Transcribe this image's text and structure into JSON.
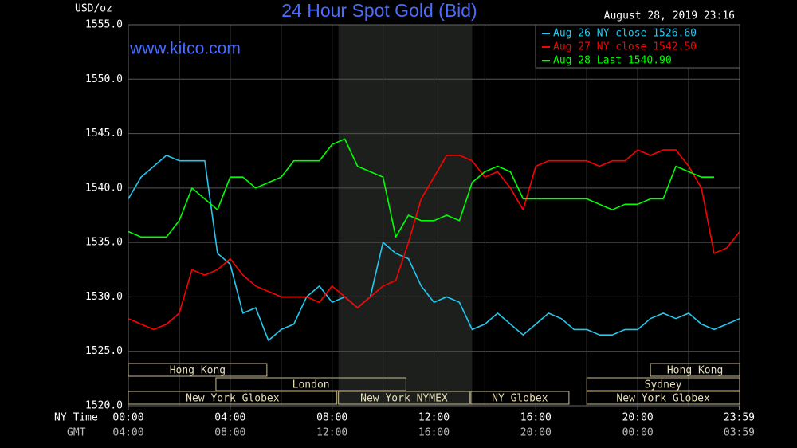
{
  "chart_data": {
    "type": "line",
    "title": "24 Hour Spot Gold (Bid)",
    "date": "August 28, 2019 23:16",
    "watermark": "www.kitco.com",
    "y_label": "USD/oz",
    "x_label": "NY Time",
    "gmt_label": "GMT",
    "x": [
      0,
      0.5,
      1,
      1.5,
      2,
      2.5,
      3,
      3.5,
      4,
      4.5,
      5,
      5.5,
      6,
      6.5,
      7,
      7.5,
      8,
      8.5,
      9,
      9.5,
      10,
      10.5,
      11,
      11.5,
      12,
      12.5,
      13,
      13.5,
      14,
      14.5,
      15,
      15.5,
      16,
      16.5,
      17,
      17.5,
      18,
      18.5,
      19,
      19.5,
      20,
      20.5,
      21,
      21.5,
      22,
      22.5,
      23,
      23.5,
      24
    ],
    "series": [
      {
        "name": "Aug 26 NY close 1526.60",
        "color": "#22c8f0",
        "values": [
          1539,
          1541,
          1542,
          1543,
          1542.5,
          1542.5,
          1542.5,
          1534,
          1533,
          1528.5,
          1529,
          1526,
          1527,
          1527.5,
          1530,
          1531,
          1529.5,
          1530,
          1529,
          1530,
          1535,
          1534,
          1533.5,
          1531,
          1529.5,
          1530,
          1529.5,
          1527,
          1527.5,
          1528.5,
          1527.5,
          1526.5,
          1527.5,
          1528.5,
          1528,
          1527,
          1527,
          1526.5,
          1526.5,
          1527,
          1527,
          1528,
          1528.5,
          1528,
          1528.5,
          1527.5,
          1527,
          1527.5,
          1528
        ]
      },
      {
        "name": "Aug 27 NY close 1542.50",
        "color": "#ff0000",
        "values": [
          1528,
          1527.5,
          1527,
          1527.5,
          1528.5,
          1532.5,
          1532,
          1532.5,
          1533.5,
          1532,
          1531,
          1530.5,
          1530,
          1530,
          1530,
          1529.5,
          1531,
          1530,
          1529,
          1530,
          1531,
          1531.5,
          1535,
          1539,
          1541,
          1543,
          1543,
          1542.5,
          1541,
          1541.5,
          1540,
          1538,
          1542,
          1542.5,
          1542.5,
          1542.5,
          1542.5,
          1542,
          1542.5,
          1542.5,
          1543.5,
          1543,
          1543.5,
          1543.5,
          1542,
          1540,
          1534,
          1534.5,
          1536
        ]
      },
      {
        "name": "Aug 28 Last 1540.90",
        "color": "#00ff00",
        "values": [
          1536,
          1535.5,
          1535.5,
          1535.5,
          1537,
          1540,
          1539,
          1538,
          1541,
          1541,
          1540,
          1540.5,
          1541,
          1542.5,
          1542.5,
          1542.5,
          1544,
          1544.5,
          1542,
          1541.5,
          1541,
          1535.5,
          1537.5,
          1537,
          1537,
          1537.5,
          1537,
          1540.5,
          1541.5,
          1542,
          1541.5,
          1539,
          1539,
          1539,
          1539,
          1539,
          1539,
          1538.5,
          1538,
          1538.5,
          1538.5,
          1539,
          1539,
          1542,
          1541.5,
          1541,
          1541,
          null,
          null
        ]
      }
    ],
    "xlim": [
      0,
      24
    ],
    "ylim": [
      1520,
      1555
    ],
    "yticks": [
      {
        "value": 1520,
        "label": "1520.0"
      },
      {
        "value": 1525,
        "label": "1525.0"
      },
      {
        "value": 1530,
        "label": "1530.0"
      },
      {
        "value": 1535,
        "label": "1535.0"
      },
      {
        "value": 1540,
        "label": "1540.0"
      },
      {
        "value": 1545,
        "label": "1545.0"
      },
      {
        "value": 1550,
        "label": "1550.0"
      },
      {
        "value": 1555,
        "label": "1555.0"
      }
    ],
    "xticks": [
      {
        "value": 0,
        "label": "00:00"
      },
      {
        "value": 4,
        "label": "04:00"
      },
      {
        "value": 8,
        "label": "08:00"
      },
      {
        "value": 12,
        "label": "12:00"
      },
      {
        "value": 16,
        "label": "16:00"
      },
      {
        "value": 20,
        "label": "20:00"
      },
      {
        "value": 23.983,
        "label": "23:59"
      }
    ],
    "gmt_labels": [
      "04:00",
      "08:00",
      "12:00",
      "16:00",
      "20:00",
      "00:00",
      "03:59"
    ],
    "xgrid": [
      2,
      4,
      6,
      8,
      10,
      12,
      14,
      16,
      18,
      20,
      22
    ],
    "shaded": [
      8.25,
      13.5
    ],
    "sessions": [
      [
        {
          "label": "Hong Kong",
          "start": 0,
          "end": 5.44
        },
        {
          "label": "Hong Kong",
          "start": 20.5,
          "end": 24
        }
      ],
      [
        {
          "label": "London",
          "start": 3.44,
          "end": 10.9
        },
        {
          "label": "Sydney",
          "start": 18,
          "end": 24
        }
      ],
      [
        {
          "label": "New York Globex",
          "start": 0,
          "end": 8.19
        },
        {
          "label": "New York NYMEX",
          "start": 8.25,
          "end": 13.4
        },
        {
          "label": "NY Globex",
          "start": 13.45,
          "end": 17.3
        },
        {
          "label": "New York Globex",
          "start": 18,
          "end": 24
        }
      ]
    ]
  }
}
